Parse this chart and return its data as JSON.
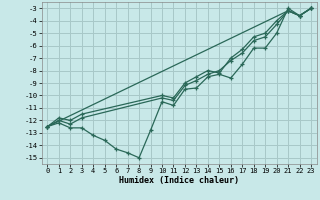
{
  "xlabel": "Humidex (Indice chaleur)",
  "bg_color": "#c8e8e8",
  "grid_color": "#a8c8c8",
  "line_color": "#2a6858",
  "xlim": [
    -0.5,
    23.5
  ],
  "ylim": [
    -15.5,
    -2.5
  ],
  "yticks": [
    -3,
    -4,
    -5,
    -6,
    -7,
    -8,
    -9,
    -10,
    -11,
    -12,
    -13,
    -14,
    -15
  ],
  "xticks": [
    0,
    1,
    2,
    3,
    4,
    5,
    6,
    7,
    8,
    9,
    10,
    11,
    12,
    13,
    14,
    15,
    16,
    17,
    18,
    19,
    20,
    21,
    22,
    23
  ],
  "lines": [
    {
      "x": [
        0,
        1,
        2,
        3,
        4,
        5,
        6,
        7,
        8,
        9,
        10,
        11,
        12,
        13,
        14,
        15,
        16,
        17,
        18,
        19,
        20,
        21,
        22,
        23
      ],
      "y": [
        -12.5,
        -12.2,
        -12.6,
        -12.6,
        -13.2,
        -13.6,
        -14.3,
        -14.6,
        -15.0,
        -12.8,
        -10.5,
        -10.8,
        -9.5,
        -9.4,
        -8.5,
        -8.3,
        -8.6,
        -7.5,
        -6.2,
        -6.2,
        -5.0,
        -3.0,
        -3.6,
        -3.0
      ]
    },
    {
      "x": [
        0,
        1,
        2,
        3,
        10,
        11,
        12,
        13,
        14,
        15,
        16,
        17,
        18,
        19,
        20,
        21,
        22,
        23
      ],
      "y": [
        -12.5,
        -12.0,
        -12.3,
        -11.8,
        -10.2,
        -10.4,
        -9.2,
        -8.8,
        -8.3,
        -8.0,
        -7.2,
        -6.6,
        -5.6,
        -5.3,
        -4.3,
        -3.2,
        -3.6,
        -3.0
      ]
    },
    {
      "x": [
        0,
        1,
        2,
        3,
        10,
        11,
        12,
        13,
        14,
        15,
        16,
        17,
        18,
        19,
        20,
        21,
        22,
        23
      ],
      "y": [
        -12.5,
        -11.8,
        -12.0,
        -11.5,
        -10.0,
        -10.2,
        -9.0,
        -8.5,
        -8.0,
        -8.2,
        -7.0,
        -6.3,
        -5.3,
        -5.0,
        -4.0,
        -3.2,
        -3.6,
        -3.0
      ]
    },
    {
      "x": [
        0,
        21,
        22,
        23
      ],
      "y": [
        -12.5,
        -3.2,
        -3.6,
        -3.0
      ]
    }
  ]
}
